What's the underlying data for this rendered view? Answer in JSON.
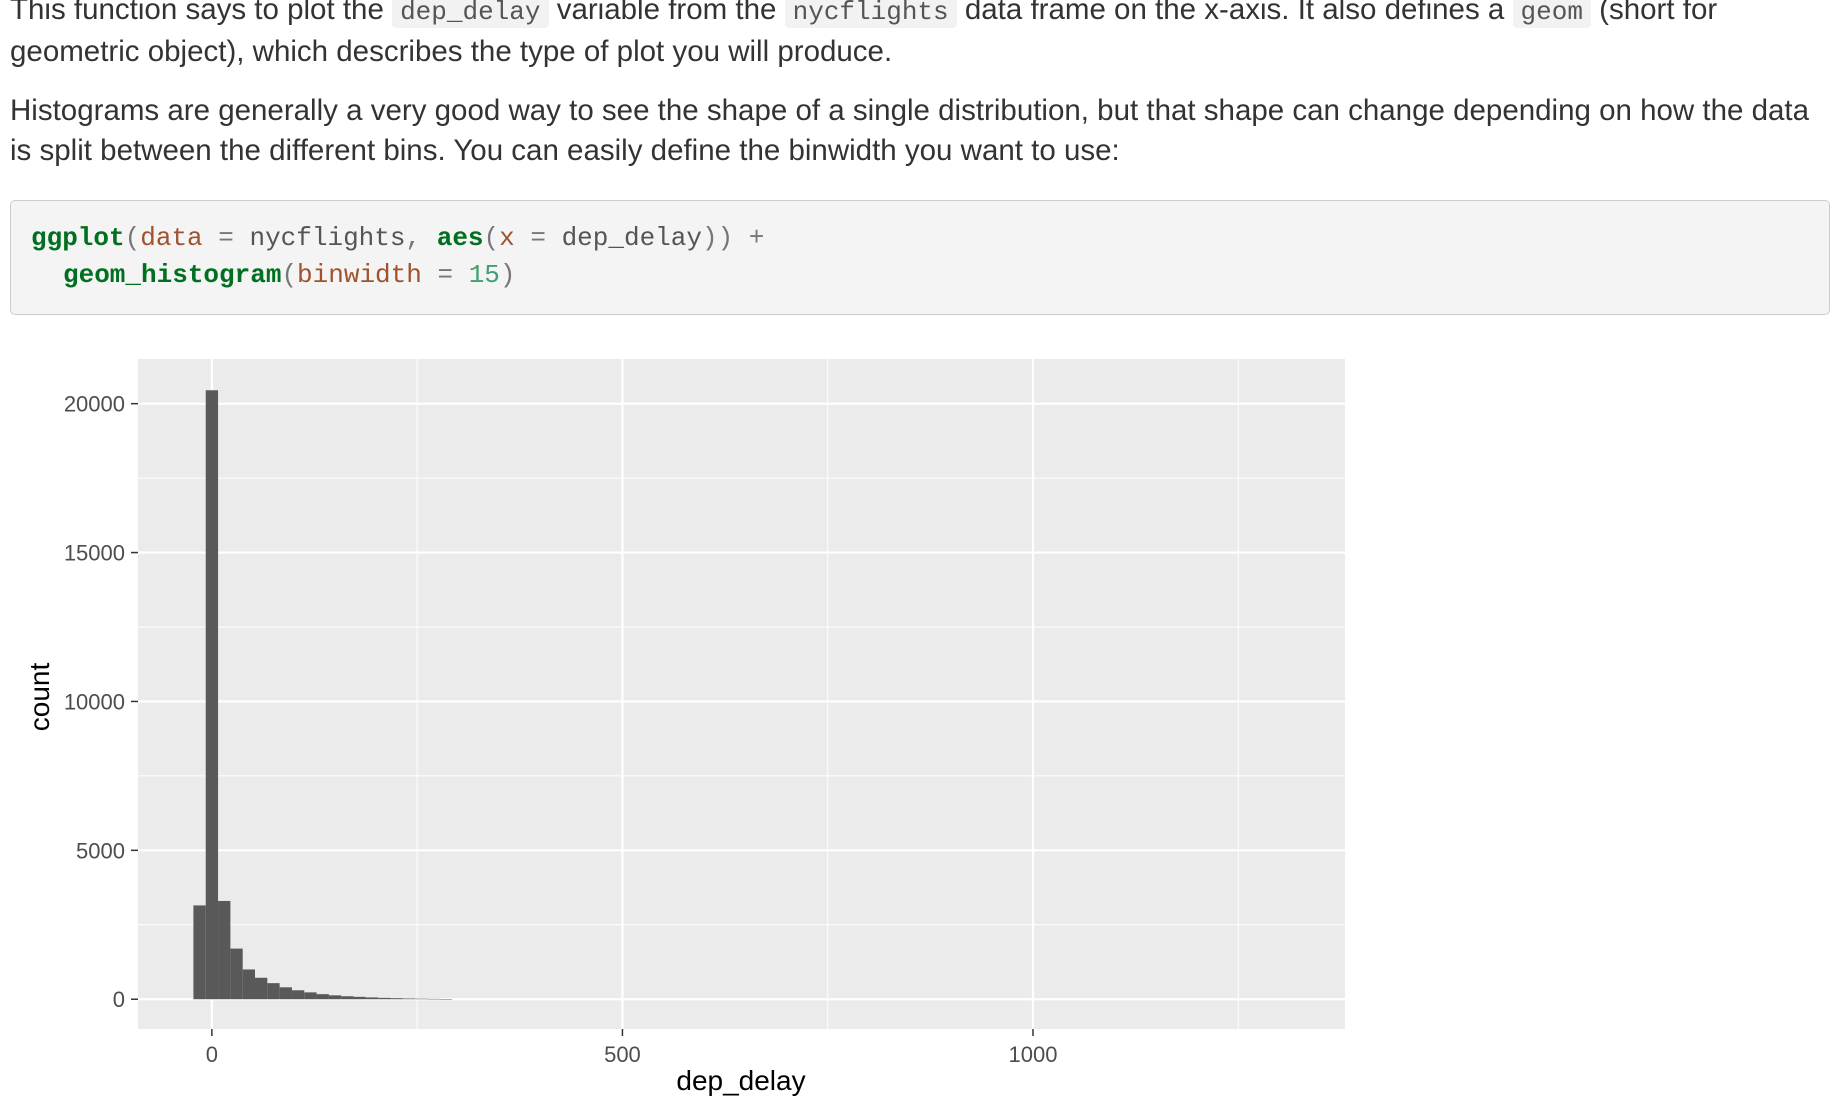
{
  "document": {
    "p1": {
      "a": "This function says to plot the ",
      "code1": "dep_delay",
      "b": " variable from the ",
      "code2": "nycflights",
      "c": " data frame on the x-axis. It also defines a ",
      "code3": "geom",
      "d": " (short for geometric object), which describes the type of plot you will produce."
    },
    "p2": "Histograms are generally a very good way to see the shape of a single distribution, but that shape can change depending on how the data is split between the different bins. You can easily define the binwidth you want to use:",
    "code": {
      "l1": {
        "fn": "ggplot",
        "p1": "(",
        "a1": "data",
        "s1": " = ",
        "v1": "nycflights",
        "s2": ", ",
        "fn2": "aes",
        "p2": "(",
        "a2": "x",
        "s3": " = ",
        "v2": "dep_delay",
        "s4": ")) +"
      },
      "l2": {
        "fn": "geom_histogram",
        "p1": "(",
        "a1": "binwidth",
        "s1": " = ",
        "n1": "15",
        "p2": ")"
      }
    }
  },
  "chart_data": {
    "type": "bar",
    "title": "",
    "xlabel": "dep_delay",
    "ylabel": "count",
    "binwidth": 15,
    "bins": [
      {
        "x0": -22.5,
        "x1": -7.5,
        "count": 3150
      },
      {
        "x0": -7.5,
        "x1": 7.5,
        "count": 20450
      },
      {
        "x0": 7.5,
        "x1": 22.5,
        "count": 3300
      },
      {
        "x0": 22.5,
        "x1": 37.5,
        "count": 1700
      },
      {
        "x0": 37.5,
        "x1": 52.5,
        "count": 1000
      },
      {
        "x0": 52.5,
        "x1": 67.5,
        "count": 720
      },
      {
        "x0": 67.5,
        "x1": 82.5,
        "count": 540
      },
      {
        "x0": 82.5,
        "x1": 97.5,
        "count": 400
      },
      {
        "x0": 97.5,
        "x1": 112.5,
        "count": 300
      },
      {
        "x0": 112.5,
        "x1": 127.5,
        "count": 230
      },
      {
        "x0": 127.5,
        "x1": 142.5,
        "count": 170
      },
      {
        "x0": 142.5,
        "x1": 157.5,
        "count": 130
      },
      {
        "x0": 157.5,
        "x1": 172.5,
        "count": 100
      },
      {
        "x0": 172.5,
        "x1": 187.5,
        "count": 80
      },
      {
        "x0": 187.5,
        "x1": 202.5,
        "count": 60
      },
      {
        "x0": 202.5,
        "x1": 217.5,
        "count": 45
      },
      {
        "x0": 217.5,
        "x1": 232.5,
        "count": 35
      },
      {
        "x0": 232.5,
        "x1": 247.5,
        "count": 25
      },
      {
        "x0": 247.5,
        "x1": 262.5,
        "count": 18
      },
      {
        "x0": 262.5,
        "x1": 277.5,
        "count": 12
      },
      {
        "x0": 277.5,
        "x1": 292.5,
        "count": 8
      }
    ],
    "xlim": [
      -90,
      1380
    ],
    "ylim": [
      -1000,
      21500
    ],
    "xticks": [
      0,
      500,
      1000
    ],
    "xtick_labels": [
      "0",
      "500",
      "1000"
    ],
    "x_minor_grid": [
      250,
      750,
      1250
    ],
    "yticks": [
      0,
      5000,
      10000,
      15000,
      20000
    ],
    "ytick_labels": [
      "0",
      "5000",
      "10000",
      "15000",
      "20000"
    ],
    "y_minor_grid": [
      2500,
      7500,
      12500,
      17500
    ],
    "grid": true,
    "colors": {
      "panel": "#ebebeb",
      "grid": "#ffffff",
      "bar": "#595959",
      "axis_text": "#4d4d4d",
      "tick": "#333333"
    }
  }
}
